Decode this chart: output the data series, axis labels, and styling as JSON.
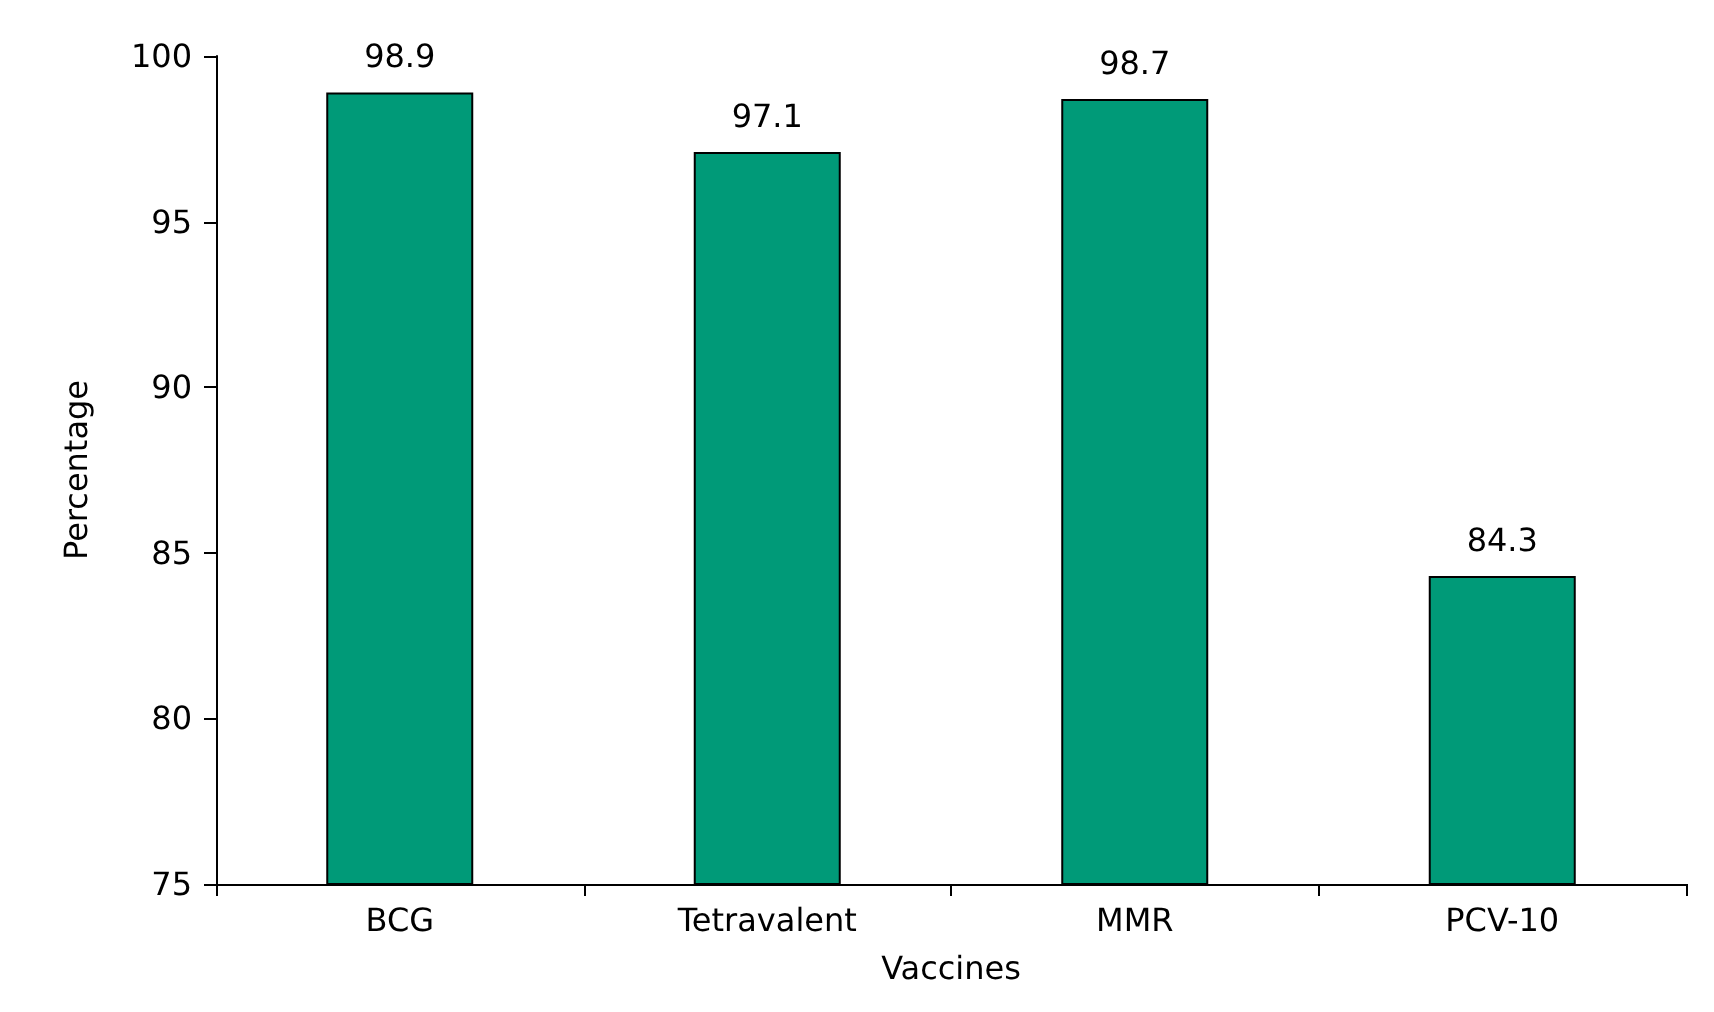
{
  "chart_data": {
    "type": "bar",
    "xlabel": "Vaccines",
    "ylabel": "Percentage",
    "categories": [
      "BCG",
      "Tetravalent",
      "MMR",
      "PCV-10"
    ],
    "values": [
      98.9,
      97.1,
      98.7,
      84.3
    ],
    "color": "#009a78",
    "ylim": [
      75,
      100
    ],
    "yticks": [
      75,
      80,
      85,
      90,
      95,
      100
    ],
    "data_labels": true,
    "grid": false
  }
}
